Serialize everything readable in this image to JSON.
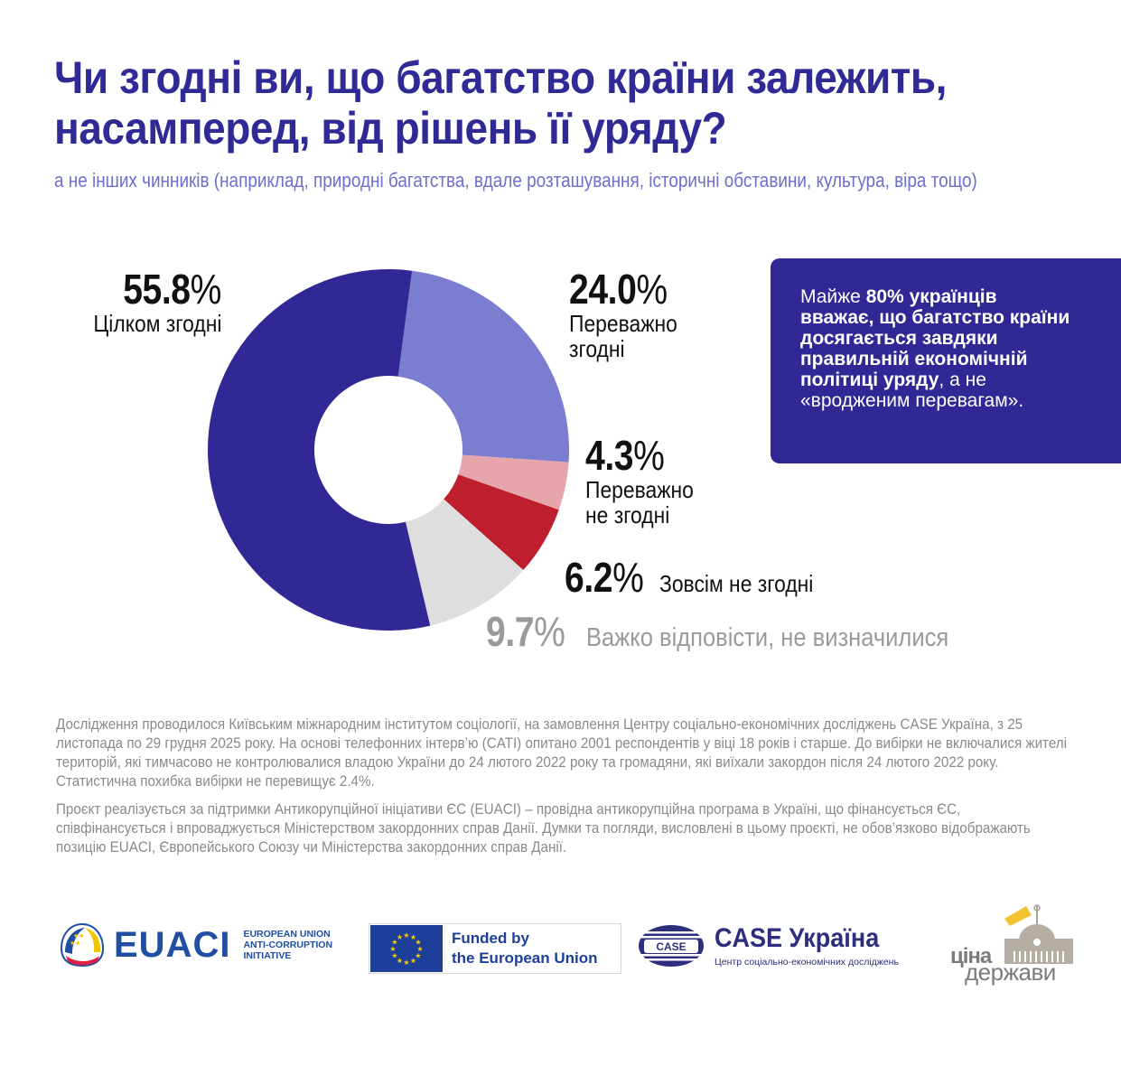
{
  "header": {
    "title_lines": [
      "Чи згодні ви, що багатство країни залежить,",
      "насамперед, від рішень її уряду?"
    ],
    "subtitle": "а не інших чинників (наприклад, природні багатства, вдале розташування, історичні обставини, культура, віра тощо)"
  },
  "chart_data": {
    "type": "pie",
    "variant": "donut",
    "title": "Чи згодні ви, що багатство країни залежить, насамперед, від рішень її уряду?",
    "unit": "%",
    "start_angle_deg": 7.5,
    "direction": "clockwise",
    "segments": [
      {
        "label": "Переважно згодні",
        "value": 24.0,
        "value_text": "24.0",
        "color": "#7b7dd1"
      },
      {
        "label": "Переважно не згодні",
        "value": 4.3,
        "value_text": "4.3",
        "color": "#e5a5aa"
      },
      {
        "label": "Зовсім не згодні",
        "value": 6.2,
        "value_text": "6.2",
        "color": "#be1e2d"
      },
      {
        "label": "Важко відповісти, не визначилися",
        "value": 9.7,
        "value_text": "9.7",
        "color": "#dedede"
      },
      {
        "label": "Цілком згодні",
        "value": 55.8,
        "value_text": "55.8",
        "color": "#312896"
      }
    ]
  },
  "labels": {
    "fully_agree": {
      "pct": "55.8",
      "sign": "%",
      "lines": [
        "Цілком згодні"
      ]
    },
    "mostly_agree": {
      "pct": "24.0",
      "sign": "%",
      "lines": [
        "Переважно",
        "згодні"
      ]
    },
    "mostly_disagree": {
      "pct": "4.3",
      "sign": "%",
      "lines": [
        "Переважно",
        "не згодні"
      ]
    },
    "fully_disagree": {
      "pct": "6.2",
      "sign": "%",
      "lines": [
        "Зовсім не згодні"
      ]
    },
    "hard_to_say": {
      "pct": "9.7",
      "sign": "%",
      "lines": [
        "Важко відповісти, не визначилися"
      ]
    }
  },
  "callout": {
    "part1": "Майже ",
    "bold1": "80% українців вважає, що багатство країни досягається завдяки правильній економічній політиці уряду",
    "part2": ", а не «вродженим перевагам».",
    "color": "#312896"
  },
  "notes": {
    "methodology": "Дослідження проводилося Київським міжнародним інститутом соціології, на замовлення Центру соціально-економічних досліджень CASE Україна, з 25 листопада по 29 грудня 2025 року. На основі телефонних інтерв’ю (CATI) опитано 2001 респондентів у віці 18 років і старше. До вибірки не включалися жителі територій, які тимчасово не контролювалися владою України до 24 лютого 2022 року та громадяни, які виїхали закордон після 24 лютого 2022 року. Статистична похибка вибірки не перевищує 2.4%.",
    "disclaimer": "Проєкт реалізується за підтримки Антикорупційної ініціативи ЄС (EUACI) – провідна антикорупційна програма в Україні, що фінансується ЄС, співфінансується і впроваджується Міністерством закордонних справ Данії. Думки та погляди, висловлені в цьому проєкті, не обов’язково відображають позицію EUACI, Європейського Союзу чи Міністерства закордонних справ Данії."
  },
  "logos": {
    "euaci": {
      "word": "EUACI",
      "sub_lines": [
        "EUROPEAN UNION",
        "ANTI-CORRUPTION",
        "INITIATIVE"
      ],
      "icon": "euaci-emblem-icon"
    },
    "eu": {
      "lines": [
        "Funded by",
        "the European Union"
      ],
      "icon": "eu-flag-icon"
    },
    "case": {
      "badge": "CASE",
      "title": "CASE Україна",
      "sub": "Центр соціально-економічних досліджень",
      "icon": "case-emblem-icon"
    },
    "cina": {
      "word1": "ціна",
      "word2": "держави",
      "icon": "parliament-building-icon"
    }
  }
}
